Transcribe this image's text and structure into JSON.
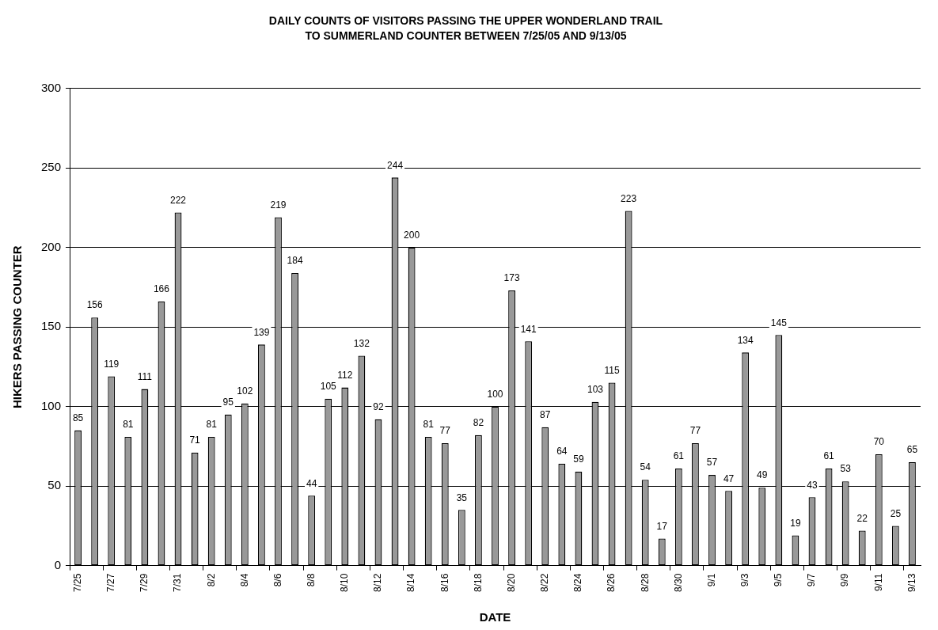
{
  "chart_data": {
    "type": "bar",
    "title": "DAILY COUNTS OF VISITORS PASSING THE UPPER WONDERLAND TRAIL\nTO SUMMERLAND COUNTER BETWEEN 7/25/05 AND 9/13/05",
    "xlabel": "DATE",
    "ylabel": "HIKERS PASSING COUNTER",
    "categories": [
      "7/25",
      null,
      "7/27",
      null,
      "7/29",
      null,
      "7/31",
      null,
      "8/2",
      null,
      "8/4",
      null,
      "8/6",
      null,
      "8/8",
      null,
      "8/10",
      null,
      "8/12",
      null,
      "8/14",
      null,
      "8/16",
      null,
      "8/18",
      null,
      "8/20",
      null,
      "8/22",
      null,
      "8/24",
      null,
      "8/26",
      null,
      "8/28",
      null,
      "8/30",
      null,
      "9/1",
      null,
      "9/3",
      null,
      "9/5",
      null,
      "9/7",
      null,
      "9/9",
      null,
      "9/11",
      null,
      "9/13"
    ],
    "values": [
      85,
      156,
      119,
      81,
      111,
      166,
      222,
      71,
      81,
      95,
      102,
      139,
      219,
      184,
      44,
      105,
      112,
      132,
      92,
      244,
      200,
      81,
      77,
      35,
      82,
      100,
      173,
      141,
      87,
      64,
      59,
      103,
      115,
      223,
      54,
      17,
      61,
      77,
      57,
      47,
      134,
      49,
      145,
      19,
      43,
      61,
      53,
      22,
      70,
      25,
      65
    ],
    "color": "#999999",
    "ylim": [
      0,
      300
    ],
    "yticks": [
      0,
      50,
      100,
      150,
      200,
      250,
      300
    ],
    "grid": "y",
    "data_labels": true,
    "legend": false
  }
}
